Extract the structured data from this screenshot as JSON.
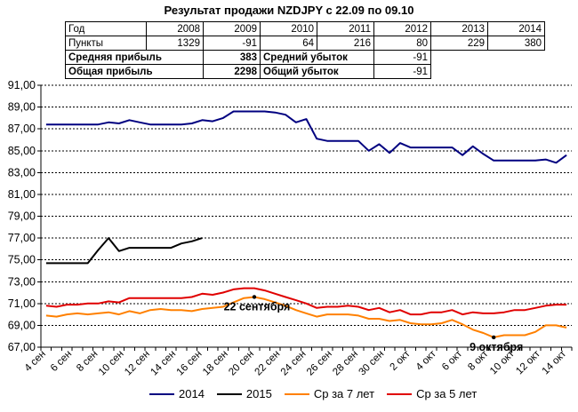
{
  "title": "Результат продажи NZDJPY с 22.09 по 09.10",
  "table": {
    "year_label": "Год",
    "years": [
      "2008",
      "2009",
      "2010",
      "2011",
      "2012",
      "2013",
      "2014"
    ],
    "points_label": "Пункты",
    "points": [
      "1329",
      "-91",
      "64",
      "216",
      "80",
      "229",
      "380"
    ],
    "avg_profit_label": "Средняя прибыль",
    "avg_profit": "383",
    "avg_loss_label": "Средний убыток",
    "avg_loss": "-91",
    "total_profit_label": "Общая прибыль",
    "total_profit": "2298",
    "total_loss_label": "Общий убыток",
    "total_loss": "-91"
  },
  "chart_data": {
    "type": "line",
    "ylim": [
      67,
      91
    ],
    "yticks": [
      "67,00",
      "69,00",
      "71,00",
      "73,00",
      "75,00",
      "77,00",
      "79,00",
      "81,00",
      "83,00",
      "85,00",
      "87,00",
      "89,00",
      "91,00"
    ],
    "x_ticks": [
      "4 сен",
      "6 сен",
      "8 сен",
      "10 сен",
      "12 сен",
      "14 сен",
      "16 сен",
      "18 сен",
      "20 сен",
      "22 сен",
      "24 сен",
      "26 сен",
      "28 сен",
      "30 сен",
      "2 окт",
      "4 окт",
      "6 окт",
      "8 окт",
      "10 окт",
      "12 окт",
      "14 окт"
    ],
    "series": [
      {
        "name": "2014",
        "color": "#000080",
        "values": [
          87.4,
          87.4,
          87.4,
          87.4,
          87.4,
          87.4,
          87.6,
          87.5,
          87.8,
          87.6,
          87.4,
          87.4,
          87.4,
          87.4,
          87.5,
          87.8,
          87.7,
          88.0,
          88.6,
          88.6,
          88.6,
          88.6,
          88.5,
          88.3,
          87.6,
          87.9,
          86.1,
          85.9,
          85.9,
          85.9,
          85.9,
          85.0,
          85.6,
          84.8,
          85.7,
          85.3,
          85.3,
          85.3,
          85.3,
          85.3,
          84.6,
          85.4,
          84.7,
          84.1,
          84.1,
          84.1,
          84.1,
          84.1,
          84.2,
          83.9,
          84.6
        ]
      },
      {
        "name": "2015",
        "color": "#000000",
        "values": [
          74.7,
          74.7,
          74.7,
          74.7,
          74.7,
          75.9,
          77.0,
          75.8,
          76.1,
          76.1,
          76.1,
          76.1,
          76.1,
          76.5,
          76.7,
          77.0
        ]
      },
      {
        "name": "Ср за 7 лет",
        "color": "#ff8000",
        "values": [
          69.9,
          69.8,
          70.0,
          70.1,
          70.0,
          70.1,
          70.2,
          70.0,
          70.3,
          70.1,
          70.4,
          70.5,
          70.4,
          70.4,
          70.3,
          70.5,
          70.6,
          70.7,
          71.1,
          71.5,
          71.6,
          71.4,
          71.1,
          70.8,
          70.4,
          70.1,
          69.8,
          70.0,
          70.0,
          70.0,
          69.9,
          69.6,
          69.6,
          69.4,
          69.5,
          69.2,
          69.1,
          69.1,
          69.2,
          69.5,
          69.1,
          68.6,
          68.3,
          67.9,
          68.1,
          68.1,
          68.1,
          68.4,
          69.0,
          69.0,
          68.8
        ]
      },
      {
        "name": "Ср за 5 лет",
        "color": "#e00000",
        "values": [
          70.8,
          70.7,
          70.9,
          70.9,
          71.0,
          71.0,
          71.2,
          71.1,
          71.5,
          71.5,
          71.5,
          71.5,
          71.5,
          71.5,
          71.6,
          71.9,
          71.8,
          72.0,
          72.3,
          72.4,
          72.4,
          72.2,
          71.9,
          71.6,
          71.3,
          71.0,
          70.6,
          70.7,
          70.7,
          70.8,
          70.7,
          70.4,
          70.6,
          70.2,
          70.4,
          70.0,
          70.0,
          70.2,
          70.2,
          70.4,
          70.0,
          70.2,
          70.1,
          70.1,
          70.2,
          70.4,
          70.4,
          70.6,
          70.8,
          70.9,
          70.9
        ]
      }
    ],
    "annotations": [
      {
        "text": "22 сентября",
        "series": 2,
        "index": 20
      },
      {
        "text": "9 октября",
        "series": 2,
        "index": 43
      }
    ],
    "grid": true,
    "legend": "bottom"
  }
}
